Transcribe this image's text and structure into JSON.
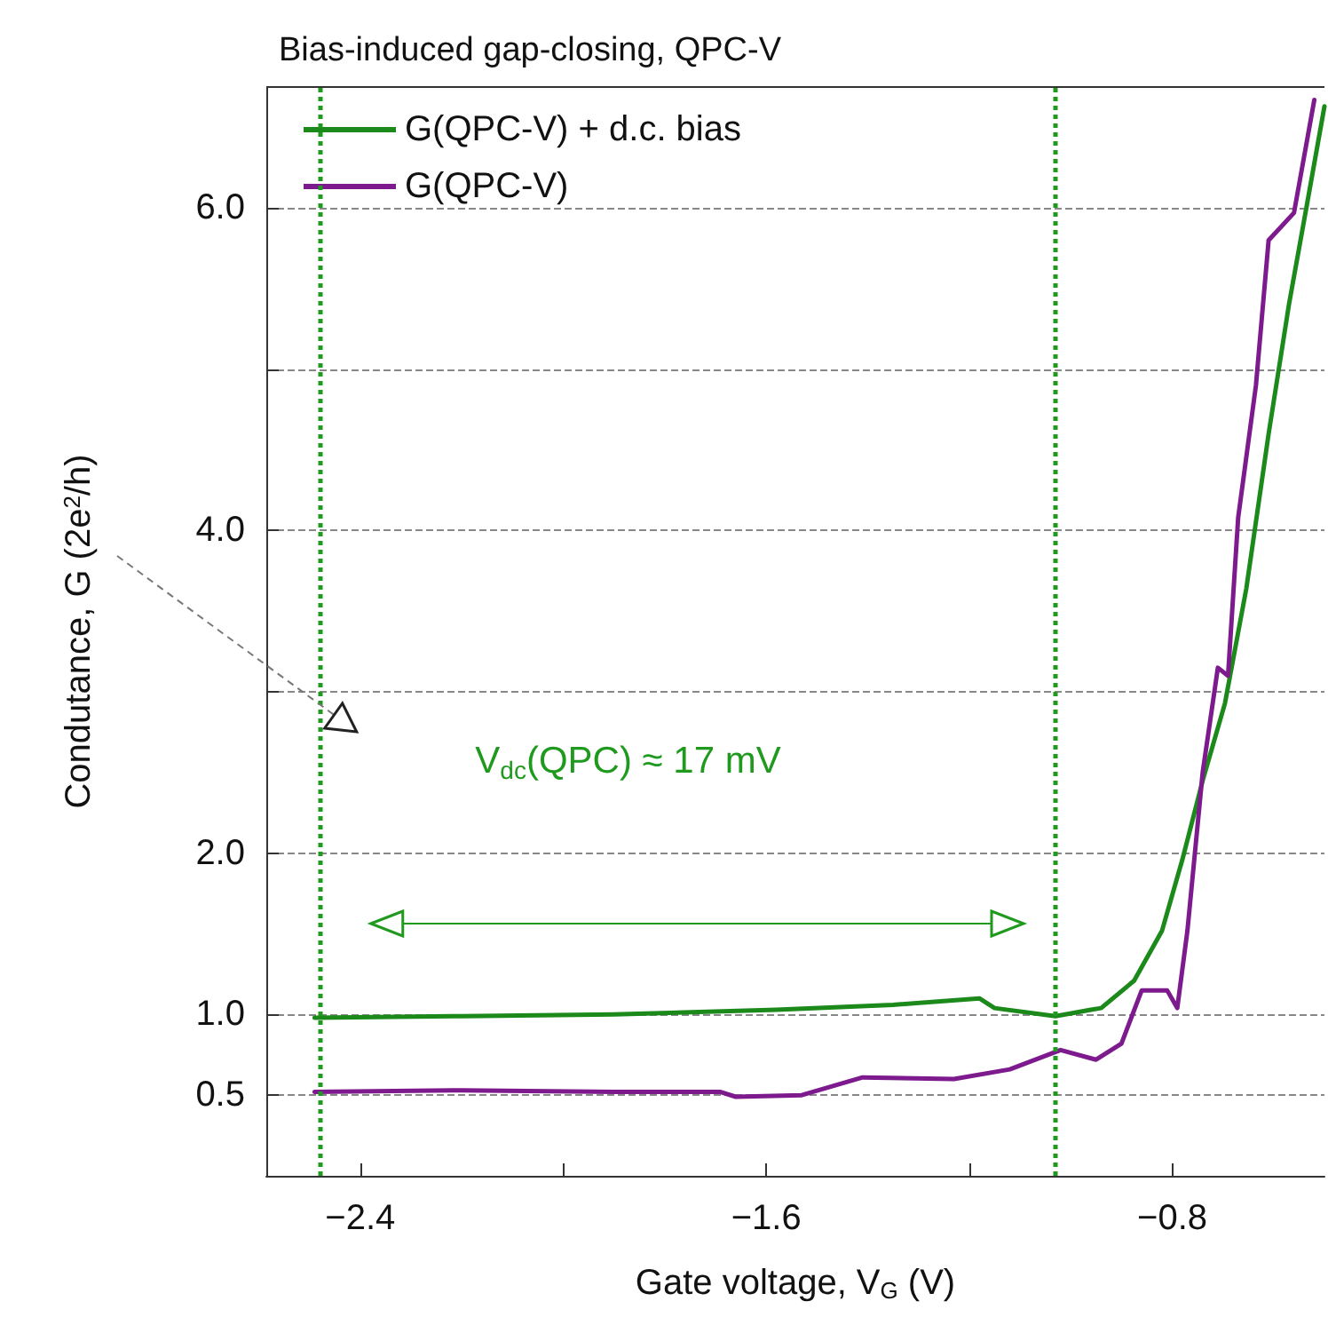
{
  "chart_data": {
    "type": "line",
    "title": "Bias-induced gap-closing, QPC-V",
    "xlabel": "Gate voltage, V$_{G}$ (V)",
    "ylabel": "Condutance, G (2e$^{2}$/h)",
    "annotations": [
      "V$_{dc}$(QPC) ≈ 17 mV"
    ],
    "legend": "top left",
    "grid": "y",
    "marker": "none",
    "line_style": "solid",
    "xlim": [
      -2.585,
      -0.5
    ],
    "ylim": [
      0,
      6.75
    ],
    "xticks": [
      {
        "value": -2.4,
        "label": "−2.4"
      },
      {
        "value": -2.0,
        "label": null
      },
      {
        "value": -1.6,
        "label": "−1.6"
      },
      {
        "value": -1.2,
        "label": null
      },
      {
        "value": -0.8,
        "label": "−0.8"
      }
    ],
    "yticks": [
      0.5,
      {
        "value": 1,
        "label": "1.0"
      },
      {
        "value": 2,
        "label": "2.0"
      },
      {
        "value": 3,
        "label": null
      },
      {
        "value": 4,
        "label": "4.0"
      },
      {
        "value": 5,
        "label": null
      },
      {
        "value": 6,
        "label": "6.0"
      }
    ],
    "ref_lines": [
      {
        "axis": "x",
        "value": -2.477,
        "color": "#1f9a1f",
        "line_style": "dotted"
      },
      {
        "axis": "x",
        "value": -1.03,
        "color": "#1f9a1f",
        "line_style": "dotted"
      }
    ],
    "series": [
      {
        "name": "G(QPC-V) + d.c. bias",
        "color": "#1b8a1b",
        "x": [
          -2.49,
          -2.2,
          -1.9,
          -1.58,
          -1.35,
          -1.18,
          -1.15,
          -1.03,
          -0.96,
          -0.94,
          -0.875,
          -0.82,
          -0.78,
          -0.74,
          -0.696,
          -0.654,
          -0.61,
          -0.57,
          -0.53,
          -0.5
        ],
        "values": [
          0.98,
          0.99,
          1.0,
          1.03,
          1.06,
          1.1,
          1.04,
          0.99,
          1.03,
          1.04,
          1.21,
          1.52,
          1.96,
          2.45,
          2.93,
          3.64,
          4.6,
          5.4,
          6.1,
          6.63
        ]
      },
      {
        "name": "G(QPC-V)",
        "color": "#7d1a8e",
        "x": [
          -2.49,
          -2.2,
          -1.9,
          -1.69,
          -1.66,
          -1.53,
          -1.41,
          -1.23,
          -1.12,
          -1.02,
          -0.95,
          -0.9,
          -0.86,
          -0.81,
          -0.79,
          -0.77,
          -0.74,
          -0.71,
          -0.69,
          -0.67,
          -0.635,
          -0.61,
          -0.56,
          -0.52
        ],
        "values": [
          0.52,
          0.53,
          0.52,
          0.52,
          0.49,
          0.5,
          0.61,
          0.6,
          0.66,
          0.78,
          0.72,
          0.82,
          1.15,
          1.15,
          1.04,
          1.52,
          2.5,
          3.15,
          3.1,
          4.08,
          4.9,
          5.8,
          5.97,
          6.67
        ]
      }
    ]
  }
}
